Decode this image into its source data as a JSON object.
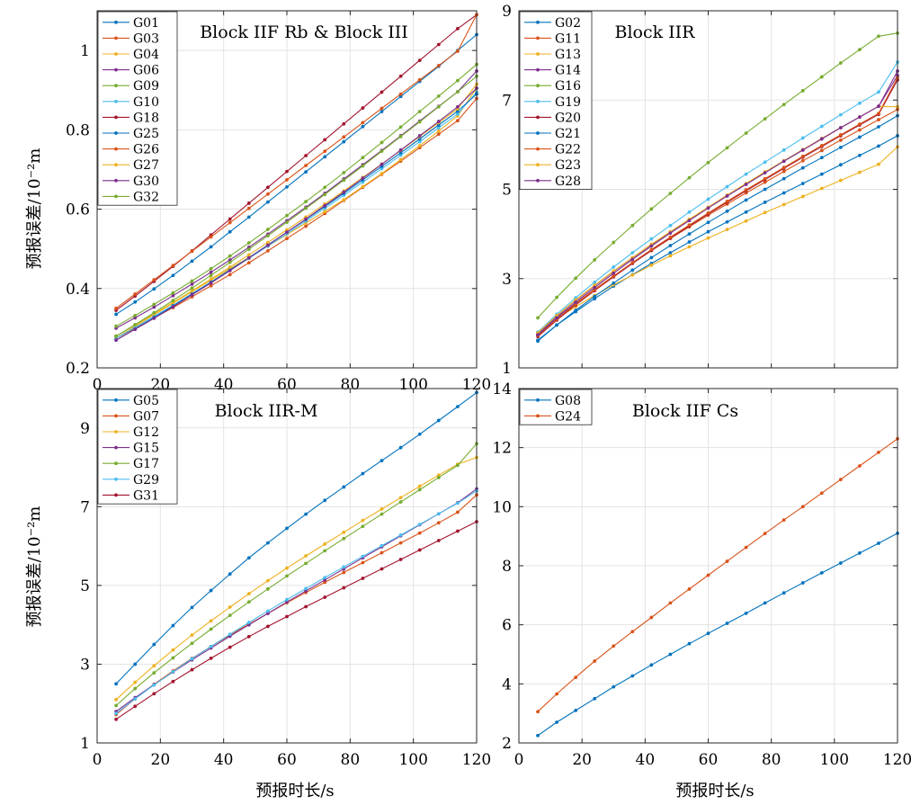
{
  "figure": {
    "ylabel": "预报误差/10⁻²m",
    "xlabel": "预报时长/s"
  },
  "colors": [
    "#0072BD",
    "#D95319",
    "#EDB120",
    "#7E2F8E",
    "#77AC30",
    "#4DBEEE",
    "#A2142F"
  ],
  "chart_data": [
    {
      "type": "line",
      "title": "Block IIF Rb & Block III",
      "x": [
        6,
        12,
        18,
        24,
        30,
        36,
        42,
        48,
        54,
        60,
        66,
        72,
        78,
        84,
        90,
        96,
        102,
        108,
        114,
        120
      ],
      "xlim": [
        0,
        120
      ],
      "ylim": [
        0.2,
        1.1
      ],
      "xticks": [
        0,
        20,
        40,
        60,
        80,
        100,
        120
      ],
      "yticks": [
        0.2,
        0.4,
        0.6,
        0.8,
        1
      ],
      "xtick_labels": [
        "0",
        "20",
        "40",
        "60",
        "80",
        "100",
        "120"
      ],
      "ytick_labels": [
        "0.2",
        "0.4",
        "0.6",
        "0.8",
        "1"
      ],
      "grid": true,
      "legend": "top-left",
      "series": [
        {
          "name": "G01",
          "values": [
            0.335,
            0.366,
            0.399,
            0.433,
            0.469,
            0.505,
            0.543,
            0.58,
            0.618,
            0.656,
            0.694,
            0.732,
            0.77,
            0.808,
            0.846,
            0.884,
            0.922,
            0.96,
            1.0,
            1.04
          ]
        },
        {
          "name": "G03",
          "values": [
            0.275,
            0.3,
            0.326,
            0.352,
            0.379,
            0.407,
            0.435,
            0.465,
            0.495,
            0.526,
            0.557,
            0.589,
            0.622,
            0.655,
            0.688,
            0.721,
            0.755,
            0.789,
            0.823,
            0.879
          ]
        },
        {
          "name": "G04",
          "values": [
            0.275,
            0.305,
            0.334,
            0.363,
            0.392,
            0.421,
            0.45,
            0.478,
            0.507,
            0.536,
            0.565,
            0.594,
            0.624,
            0.657,
            0.69,
            0.725,
            0.76,
            0.797,
            0.835,
            0.905
          ]
        },
        {
          "name": "G06",
          "values": [
            0.3,
            0.326,
            0.353,
            0.382,
            0.411,
            0.441,
            0.472,
            0.504,
            0.537,
            0.571,
            0.605,
            0.64,
            0.676,
            0.712,
            0.748,
            0.785,
            0.822,
            0.859,
            0.896,
            0.948
          ]
        },
        {
          "name": "G09",
          "values": [
            0.305,
            0.332,
            0.36,
            0.389,
            0.419,
            0.45,
            0.482,
            0.515,
            0.549,
            0.584,
            0.619,
            0.655,
            0.692,
            0.73,
            0.768,
            0.807,
            0.846,
            0.885,
            0.924,
            0.965
          ]
        },
        {
          "name": "G10",
          "values": [
            0.275,
            0.302,
            0.33,
            0.358,
            0.387,
            0.416,
            0.446,
            0.476,
            0.507,
            0.538,
            0.57,
            0.602,
            0.635,
            0.668,
            0.702,
            0.736,
            0.77,
            0.805,
            0.84,
            0.895
          ]
        },
        {
          "name": "G18",
          "values": [
            0.345,
            0.381,
            0.418,
            0.456,
            0.495,
            0.535,
            0.575,
            0.615,
            0.655,
            0.695,
            0.735,
            0.775,
            0.815,
            0.855,
            0.895,
            0.935,
            0.975,
            1.015,
            1.055,
            1.09
          ]
        },
        {
          "name": "G25",
          "values": [
            0.27,
            0.298,
            0.327,
            0.356,
            0.386,
            0.416,
            0.447,
            0.478,
            0.51,
            0.542,
            0.574,
            0.607,
            0.64,
            0.674,
            0.708,
            0.742,
            0.777,
            0.812,
            0.847,
            0.89
          ]
        },
        {
          "name": "G26",
          "values": [
            0.35,
            0.386,
            0.422,
            0.458,
            0.494,
            0.53,
            0.566,
            0.602,
            0.638,
            0.674,
            0.71,
            0.746,
            0.782,
            0.818,
            0.854,
            0.89,
            0.926,
            0.962,
            0.998,
            1.09
          ]
        },
        {
          "name": "G27",
          "values": [
            0.28,
            0.308,
            0.336,
            0.365,
            0.394,
            0.424,
            0.454,
            0.485,
            0.516,
            0.548,
            0.58,
            0.613,
            0.646,
            0.68,
            0.714,
            0.748,
            0.783,
            0.818,
            0.853,
            0.915
          ]
        },
        {
          "name": "G30",
          "values": [
            0.27,
            0.297,
            0.325,
            0.354,
            0.384,
            0.414,
            0.445,
            0.477,
            0.509,
            0.542,
            0.575,
            0.609,
            0.643,
            0.678,
            0.713,
            0.749,
            0.785,
            0.821,
            0.858,
            0.905
          ]
        },
        {
          "name": "G32",
          "values": [
            0.28,
            0.309,
            0.339,
            0.37,
            0.401,
            0.433,
            0.466,
            0.499,
            0.533,
            0.567,
            0.602,
            0.637,
            0.673,
            0.709,
            0.746,
            0.783,
            0.82,
            0.858,
            0.896,
            0.935
          ]
        }
      ]
    },
    {
      "type": "line",
      "title": "Block IIR",
      "x": [
        6,
        12,
        18,
        24,
        30,
        36,
        42,
        48,
        54,
        60,
        66,
        72,
        78,
        84,
        90,
        96,
        102,
        108,
        114,
        120
      ],
      "xlim": [
        0,
        120
      ],
      "ylim": [
        1,
        9
      ],
      "xticks": [
        0,
        20,
        40,
        60,
        80,
        100,
        120
      ],
      "yticks": [
        1,
        3,
        5,
        7,
        9
      ],
      "xtick_labels": [
        "",
        "",
        "",
        "",
        "",
        "",
        ""
      ],
      "ytick_labels": [
        "1",
        "3",
        "5",
        "7",
        "9"
      ],
      "grid": true,
      "legend": "top-left",
      "series": [
        {
          "name": "G02",
          "values": [
            1.62,
            1.96,
            2.26,
            2.55,
            2.83,
            3.09,
            3.34,
            3.58,
            3.82,
            4.05,
            4.27,
            4.49,
            4.71,
            4.92,
            5.13,
            5.34,
            5.55,
            5.76,
            5.97,
            6.2
          ]
        },
        {
          "name": "G11",
          "values": [
            1.73,
            2.1,
            2.44,
            2.76,
            3.06,
            3.35,
            3.63,
            3.9,
            4.16,
            4.42,
            4.67,
            4.92,
            5.16,
            5.4,
            5.64,
            5.87,
            6.1,
            6.33,
            6.56,
            6.79
          ]
        },
        {
          "name": "G13",
          "values": [
            1.8,
            2.1,
            2.37,
            2.62,
            2.86,
            3.08,
            3.3,
            3.51,
            3.71,
            3.91,
            4.1,
            4.29,
            4.48,
            4.66,
            4.84,
            5.02,
            5.2,
            5.38,
            5.56,
            5.95
          ]
        },
        {
          "name": "G14",
          "values": [
            1.76,
            2.15,
            2.51,
            2.84,
            3.16,
            3.46,
            3.76,
            4.04,
            4.32,
            4.59,
            4.86,
            5.12,
            5.38,
            5.63,
            5.88,
            6.13,
            6.38,
            6.62,
            6.86,
            7.55
          ]
        },
        {
          "name": "G16",
          "values": [
            2.12,
            2.58,
            3.01,
            3.42,
            3.81,
            4.19,
            4.56,
            4.91,
            5.26,
            5.6,
            5.93,
            6.26,
            6.58,
            6.9,
            7.21,
            7.52,
            7.83,
            8.13,
            8.43,
            8.5
          ]
        },
        {
          "name": "G19",
          "values": [
            1.8,
            2.2,
            2.57,
            2.92,
            3.26,
            3.58,
            3.89,
            4.19,
            4.49,
            4.78,
            5.06,
            5.34,
            5.61,
            5.88,
            6.15,
            6.41,
            6.67,
            6.93,
            7.18,
            7.85
          ]
        },
        {
          "name": "G20",
          "values": [
            1.7,
            2.07,
            2.41,
            2.73,
            3.04,
            3.34,
            3.63,
            3.91,
            4.18,
            4.45,
            4.71,
            4.97,
            5.22,
            5.47,
            5.72,
            5.96,
            6.2,
            6.44,
            6.68,
            7.45
          ]
        },
        {
          "name": "G21",
          "values": [
            1.6,
            1.96,
            2.29,
            2.6,
            2.9,
            3.19,
            3.47,
            3.74,
            4.0,
            4.26,
            4.51,
            4.76,
            5.0,
            5.24,
            5.48,
            5.71,
            5.94,
            6.17,
            6.4,
            6.65
          ]
        },
        {
          "name": "G22",
          "values": [
            1.72,
            2.09,
            2.43,
            2.75,
            3.06,
            3.36,
            3.65,
            3.93,
            4.2,
            4.47,
            4.73,
            4.99,
            5.24,
            5.49,
            5.74,
            5.98,
            6.22,
            6.46,
            6.7,
            7.5
          ]
        },
        {
          "name": "G23",
          "values": [
            1.78,
            2.17,
            2.52,
            2.85,
            3.17,
            3.47,
            3.77,
            4.05,
            4.33,
            4.6,
            4.87,
            5.13,
            5.39,
            5.64,
            5.89,
            6.14,
            6.38,
            6.62,
            6.86,
            6.85
          ]
        },
        {
          "name": "G28",
          "values": [
            1.74,
            2.12,
            2.47,
            2.8,
            3.12,
            3.43,
            3.73,
            4.02,
            4.3,
            4.58,
            4.85,
            5.11,
            5.37,
            5.63,
            5.88,
            6.13,
            6.38,
            6.62,
            6.86,
            7.65
          ]
        }
      ]
    },
    {
      "type": "line",
      "title": "Block IIR-M",
      "x": [
        6,
        12,
        18,
        24,
        30,
        36,
        42,
        48,
        54,
        60,
        66,
        72,
        78,
        84,
        90,
        96,
        102,
        108,
        114,
        120
      ],
      "xlim": [
        0,
        120
      ],
      "ylim": [
        1,
        10
      ],
      "xticks": [
        0,
        20,
        40,
        60,
        80,
        100,
        120
      ],
      "yticks": [
        1,
        3,
        5,
        7,
        9
      ],
      "xtick_labels": [
        "0",
        "20",
        "40",
        "60",
        "80",
        "100",
        "120"
      ],
      "ytick_labels": [
        "1",
        "3",
        "5",
        "7",
        "9"
      ],
      "grid": true,
      "legend": "top-left",
      "series": [
        {
          "name": "G05",
          "values": [
            2.5,
            3.0,
            3.5,
            3.98,
            4.44,
            4.87,
            5.29,
            5.7,
            6.08,
            6.45,
            6.81,
            7.16,
            7.5,
            7.84,
            8.17,
            8.5,
            8.84,
            9.19,
            9.54,
            9.9
          ]
        },
        {
          "name": "G07",
          "values": [
            1.72,
            2.12,
            2.49,
            2.83,
            3.15,
            3.45,
            3.74,
            4.02,
            4.29,
            4.56,
            4.82,
            5.08,
            5.33,
            5.58,
            5.83,
            6.08,
            6.33,
            6.59,
            6.86,
            7.3
          ]
        },
        {
          "name": "G12",
          "values": [
            2.1,
            2.54,
            2.96,
            3.36,
            3.74,
            4.1,
            4.45,
            4.79,
            5.12,
            5.44,
            5.75,
            6.05,
            6.35,
            6.65,
            6.94,
            7.23,
            7.52,
            7.8,
            8.08,
            8.25
          ]
        },
        {
          "name": "G15",
          "values": [
            1.8,
            2.15,
            2.48,
            2.8,
            3.11,
            3.41,
            3.71,
            4.0,
            4.29,
            4.58,
            4.86,
            5.14,
            5.42,
            5.7,
            5.98,
            6.26,
            6.54,
            6.82,
            7.1,
            7.45
          ]
        },
        {
          "name": "G17",
          "values": [
            1.95,
            2.38,
            2.78,
            3.16,
            3.53,
            3.89,
            4.24,
            4.58,
            4.91,
            5.24,
            5.56,
            5.88,
            6.19,
            6.5,
            6.81,
            7.12,
            7.43,
            7.74,
            8.05,
            8.6
          ]
        },
        {
          "name": "G29",
          "values": [
            1.75,
            2.12,
            2.47,
            2.81,
            3.14,
            3.45,
            3.76,
            4.06,
            4.35,
            4.64,
            4.92,
            5.2,
            5.47,
            5.74,
            6.01,
            6.28,
            6.55,
            6.82,
            7.09,
            7.4
          ]
        },
        {
          "name": "G31",
          "values": [
            1.6,
            1.93,
            2.25,
            2.56,
            2.86,
            3.15,
            3.43,
            3.7,
            3.96,
            4.21,
            4.46,
            4.7,
            4.94,
            5.18,
            5.42,
            5.66,
            5.9,
            6.14,
            6.38,
            6.62
          ]
        }
      ]
    },
    {
      "type": "line",
      "title": "Block IIF Cs",
      "x": [
        6,
        12,
        18,
        24,
        30,
        36,
        42,
        48,
        54,
        60,
        66,
        72,
        78,
        84,
        90,
        96,
        102,
        108,
        114,
        120
      ],
      "xlim": [
        0,
        120
      ],
      "ylim": [
        2,
        14
      ],
      "xticks": [
        0,
        20,
        40,
        60,
        80,
        100,
        120
      ],
      "yticks": [
        2,
        4,
        6,
        8,
        10,
        12,
        14
      ],
      "xtick_labels": [
        "0",
        "20",
        "40",
        "60",
        "80",
        "100",
        "120"
      ],
      "ytick_labels": [
        "2",
        "4",
        "6",
        "8",
        "10",
        "12",
        "14"
      ],
      "grid": true,
      "legend": "top-left",
      "series": [
        {
          "name": "G08",
          "values": [
            2.25,
            2.7,
            3.1,
            3.5,
            3.9,
            4.27,
            4.64,
            5.0,
            5.36,
            5.71,
            6.05,
            6.39,
            6.74,
            7.08,
            7.42,
            7.76,
            8.09,
            8.43,
            8.76,
            9.1
          ]
        },
        {
          "name": "G24",
          "values": [
            3.06,
            3.66,
            4.22,
            4.77,
            5.28,
            5.77,
            6.25,
            6.74,
            7.21,
            7.68,
            8.15,
            8.62,
            9.09,
            9.55,
            10.0,
            10.46,
            10.92,
            11.38,
            11.84,
            12.3
          ]
        }
      ]
    }
  ]
}
